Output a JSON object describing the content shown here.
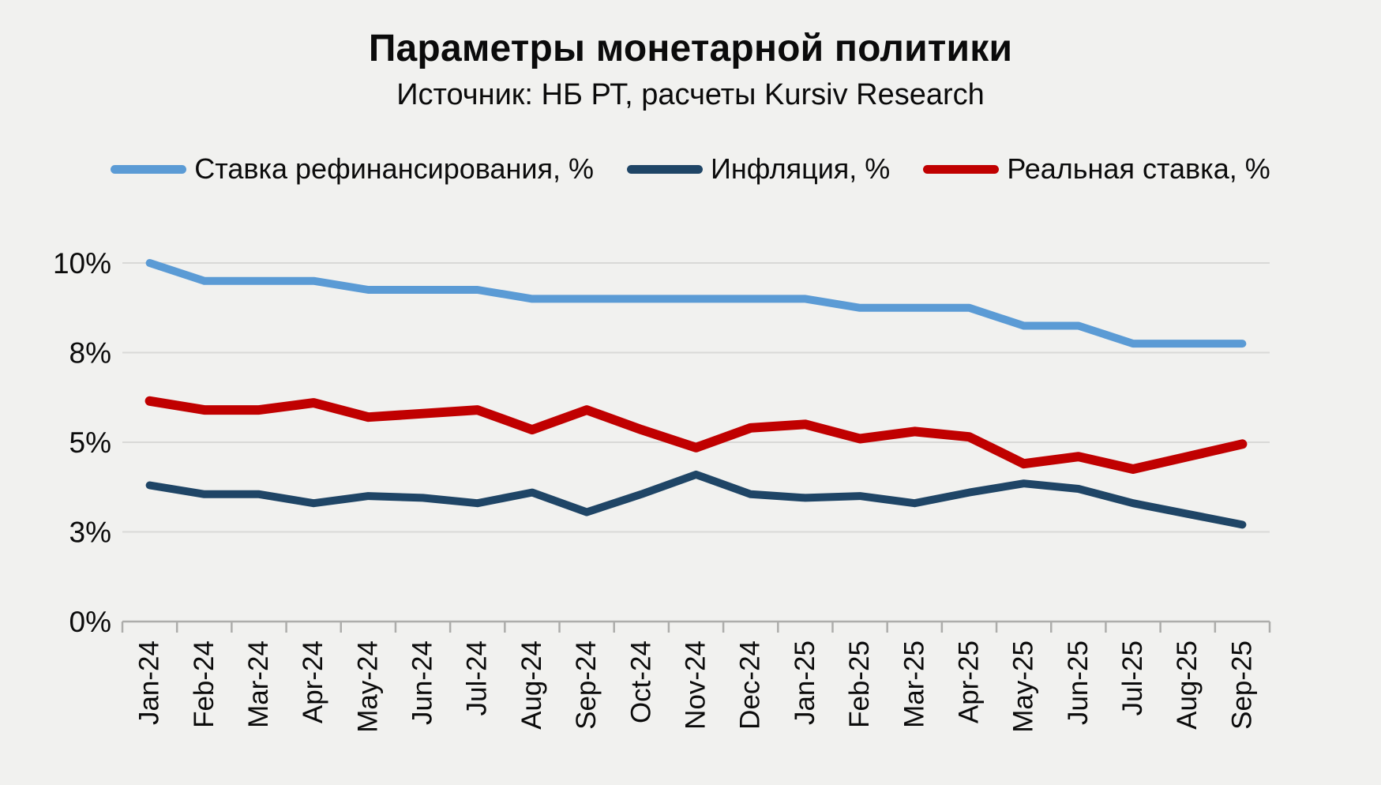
{
  "title": "Параметры монетарной политики",
  "subtitle": "Источник: НБ РТ, расчеты Kursiv Research",
  "colors": {
    "background": "#F1F1EF",
    "grid": "#D9D9D7",
    "axis": "#ADADAB",
    "text": "#0B0B0B"
  },
  "chart_data": {
    "type": "line",
    "title": "Параметры монетарной политики",
    "subtitle": "Источник: НБ РТ, расчеты Kursiv Research",
    "categories": [
      "Jan-24",
      "Feb-24",
      "Mar-24",
      "Apr-24",
      "May-24",
      "Jun-24",
      "Jul-24",
      "Aug-24",
      "Sep-24",
      "Oct-24",
      "Nov-24",
      "Dec-24",
      "Jan-25",
      "Feb-25",
      "Mar-25",
      "Apr-25",
      "May-25",
      "Jun-25",
      "Jul-25",
      "Aug-25",
      "Sep-25"
    ],
    "series": [
      {
        "name": "Ставка рефинансирования, %",
        "slug": "refinancing-rate",
        "color": "#5B9BD5",
        "line_width": 10,
        "values": [
          10.0,
          9.5,
          9.5,
          9.5,
          9.25,
          9.25,
          9.25,
          9.0,
          9.0,
          9.0,
          9.0,
          9.0,
          9.0,
          8.75,
          8.75,
          8.75,
          8.25,
          8.25,
          7.75,
          7.75,
          7.75
        ]
      },
      {
        "name": "Инфляция, %",
        "slug": "inflation",
        "color": "#1F4566",
        "line_width": 10,
        "values": [
          3.8,
          3.55,
          3.55,
          3.3,
          3.5,
          3.45,
          3.3,
          3.6,
          3.05,
          3.55,
          4.1,
          3.55,
          3.45,
          3.5,
          3.3,
          3.6,
          3.85,
          3.7,
          3.3,
          3.0,
          2.7
        ]
      },
      {
        "name": "Реальная ставка, %",
        "slug": "real-rate",
        "color": "#C00000",
        "line_width": 12,
        "values": [
          6.15,
          5.9,
          5.9,
          6.1,
          5.7,
          5.8,
          5.9,
          5.35,
          5.9,
          5.35,
          4.85,
          5.4,
          5.5,
          5.1,
          5.3,
          5.15,
          4.4,
          4.6,
          4.25,
          4.6,
          4.95
        ]
      }
    ],
    "y_axis": {
      "min": 0,
      "max": 10,
      "ticks": [
        {
          "value": 10,
          "label": "10%"
        },
        {
          "value": 7.5,
          "label": "8%"
        },
        {
          "value": 5,
          "label": "5%"
        },
        {
          "value": 2.5,
          "label": "3%"
        },
        {
          "value": 0,
          "label": "0%"
        }
      ]
    },
    "legend_position": "top",
    "grid": true
  }
}
